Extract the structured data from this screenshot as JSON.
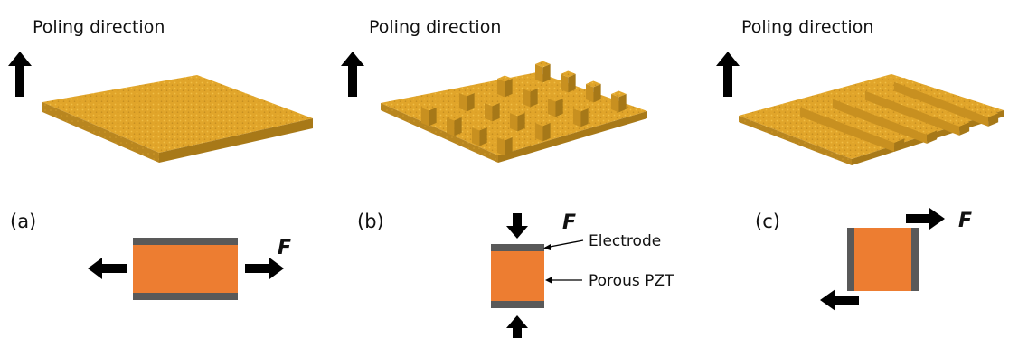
{
  "panels": [
    {
      "id": "a",
      "title": "Poling direction",
      "label": "(a)",
      "structure": "flat slab",
      "force_label": "F",
      "mode": "tension"
    },
    {
      "id": "b",
      "title": "Poling direction",
      "label": "(b)",
      "structure": "pillar array",
      "force_label": "F",
      "mode": "compression"
    },
    {
      "id": "c",
      "title": "Poling direction",
      "label": "(c)",
      "structure": "line array",
      "force_label": "F",
      "mode": "shear"
    }
  ],
  "annotations": {
    "electrode": "Electrode",
    "porous": "Porous PZT"
  },
  "colors": {
    "pzt_orange": "#ED7D31",
    "electrode_gray": "#595959",
    "slab_top": "#E2A628",
    "slab_side": "#B5831C",
    "arrow": "#000000"
  }
}
